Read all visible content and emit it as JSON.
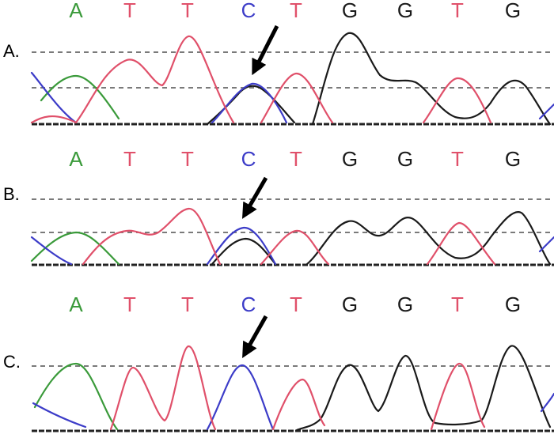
{
  "colors": {
    "A": "#3a9a3a",
    "T": "#e0506a",
    "C": "#3c3cc8",
    "G": "#1a1a1a"
  },
  "panels": [
    {
      "label": "A.",
      "bases": [
        "A",
        "T",
        "T",
        "C",
        "T",
        "G",
        "G",
        "T",
        "G"
      ]
    },
    {
      "label": "B.",
      "bases": [
        "A",
        "T",
        "T",
        "C",
        "T",
        "G",
        "G",
        "T",
        "G"
      ]
    },
    {
      "label": "C.",
      "bases": [
        "A",
        "T",
        "T",
        "C",
        "T",
        "G",
        "G",
        "T",
        "G"
      ]
    }
  ],
  "pointer_icon": "arrow-down-left-icon"
}
